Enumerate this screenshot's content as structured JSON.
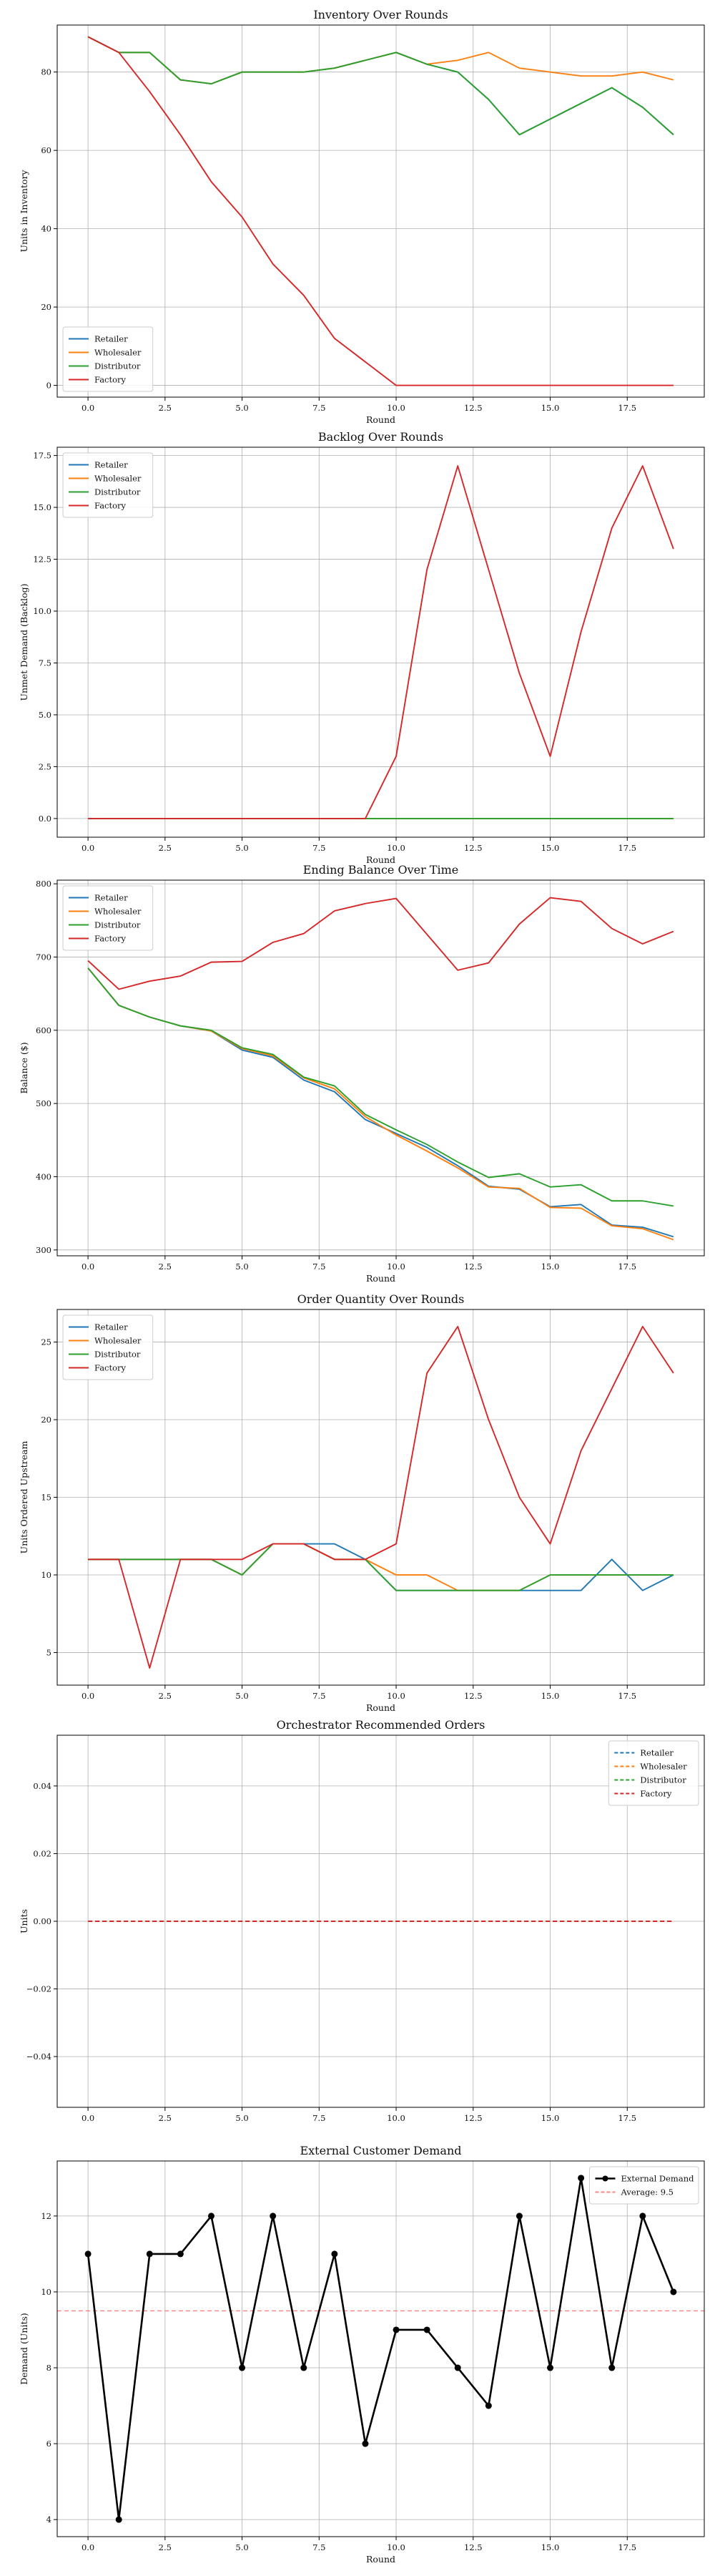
{
  "chart_data": [
    {
      "type": "line",
      "title": "Inventory Over Rounds",
      "xlabel": "Round",
      "ylabel": "Units in Inventory",
      "xlim": [
        -1,
        20
      ],
      "ylim": [
        -3,
        92
      ],
      "xticks": [
        0,
        2.5,
        5,
        7.5,
        10,
        12.5,
        15,
        17.5
      ],
      "xtick_labels": [
        "0.0",
        "2.5",
        "5.0",
        "7.5",
        "10.0",
        "12.5",
        "15.0",
        "17.5"
      ],
      "yticks": [
        0,
        20,
        40,
        60,
        80
      ],
      "ytick_labels": [
        "0",
        "20",
        "40",
        "60",
        "80"
      ],
      "grid": true,
      "legend": "lower-left",
      "x": [
        0,
        1,
        2,
        3,
        4,
        5,
        6,
        7,
        8,
        9,
        10,
        11,
        12,
        13,
        14,
        15,
        16,
        17,
        18,
        19
      ],
      "series": [
        {
          "name": "Retailer",
          "color": "#1f77b4",
          "style": "solid",
          "values": [
            89,
            85,
            85,
            78,
            77,
            80,
            80,
            80,
            81,
            83,
            85,
            82,
            80,
            73,
            64,
            68,
            72,
            76,
            71,
            64
          ]
        },
        {
          "name": "Wholesaler",
          "color": "#ff7f0e",
          "style": "solid",
          "values": [
            89,
            85,
            85,
            78,
            77,
            80,
            80,
            80,
            81,
            83,
            85,
            82,
            83,
            85,
            81,
            80,
            79,
            79,
            80,
            78
          ]
        },
        {
          "name": "Distributor",
          "color": "#2ca02c",
          "style": "solid",
          "values": [
            89,
            85,
            85,
            78,
            77,
            80,
            80,
            80,
            81,
            83,
            85,
            82,
            80,
            73,
            64,
            68,
            72,
            76,
            71,
            64
          ]
        },
        {
          "name": "Factory",
          "color": "#d62728",
          "style": "solid",
          "values": [
            89,
            85,
            75,
            64,
            52,
            43,
            31,
            23,
            12,
            6,
            0,
            0,
            0,
            0,
            0,
            0,
            0,
            0,
            0,
            0
          ]
        }
      ]
    },
    {
      "type": "line",
      "title": "Backlog Over Rounds",
      "xlabel": "Round",
      "ylabel": "Unmet Demand (Backlog)",
      "xlim": [
        -1,
        20
      ],
      "ylim": [
        -0.9,
        17.9
      ],
      "xticks": [
        0,
        2.5,
        5,
        7.5,
        10,
        12.5,
        15,
        17.5
      ],
      "xtick_labels": [
        "0.0",
        "2.5",
        "5.0",
        "7.5",
        "10.0",
        "12.5",
        "15.0",
        "17.5"
      ],
      "yticks": [
        0,
        2.5,
        5,
        7.5,
        10,
        12.5,
        15,
        17.5
      ],
      "ytick_labels": [
        "0.0",
        "2.5",
        "5.0",
        "7.5",
        "10.0",
        "12.5",
        "15.0",
        "17.5"
      ],
      "grid": true,
      "legend": "upper-left",
      "x": [
        0,
        1,
        2,
        3,
        4,
        5,
        6,
        7,
        8,
        9,
        10,
        11,
        12,
        13,
        14,
        15,
        16,
        17,
        18,
        19
      ],
      "series": [
        {
          "name": "Retailer",
          "color": "#1f77b4",
          "style": "solid",
          "values": [
            0,
            0,
            0,
            0,
            0,
            0,
            0,
            0,
            0,
            0,
            0,
            0,
            0,
            0,
            0,
            0,
            0,
            0,
            0,
            0
          ]
        },
        {
          "name": "Wholesaler",
          "color": "#ff7f0e",
          "style": "solid",
          "values": [
            0,
            0,
            0,
            0,
            0,
            0,
            0,
            0,
            0,
            0,
            0,
            0,
            0,
            0,
            0,
            0,
            0,
            0,
            0,
            0
          ]
        },
        {
          "name": "Distributor",
          "color": "#2ca02c",
          "style": "solid",
          "values": [
            0,
            0,
            0,
            0,
            0,
            0,
            0,
            0,
            0,
            0,
            0,
            0,
            0,
            0,
            0,
            0,
            0,
            0,
            0,
            0
          ]
        },
        {
          "name": "Factory",
          "color": "#d62728",
          "style": "solid",
          "values": [
            0,
            0,
            0,
            0,
            0,
            0,
            0,
            0,
            0,
            0,
            3,
            12,
            17,
            12,
            7,
            3,
            9,
            14,
            17,
            13
          ]
        }
      ]
    },
    {
      "type": "line",
      "title": "Ending Balance Over Time",
      "xlabel": "Round",
      "ylabel": "Balance ($)",
      "xlim": [
        -1,
        20
      ],
      "ylim": [
        292,
        805
      ],
      "xticks": [
        0,
        2.5,
        5,
        7.5,
        10,
        12.5,
        15,
        17.5
      ],
      "xtick_labels": [
        "0.0",
        "2.5",
        "5.0",
        "7.5",
        "10.0",
        "12.5",
        "15.0",
        "17.5"
      ],
      "yticks": [
        300,
        400,
        500,
        600,
        700,
        800
      ],
      "ytick_labels": [
        "300",
        "400",
        "500",
        "600",
        "700",
        "800"
      ],
      "grid": true,
      "legend": "upper-left",
      "x": [
        0,
        1,
        2,
        3,
        4,
        5,
        6,
        7,
        8,
        9,
        10,
        11,
        12,
        13,
        14,
        15,
        16,
        17,
        18,
        19
      ],
      "series": [
        {
          "name": "Retailer",
          "color": "#1f77b4",
          "style": "solid",
          "values": [
            685,
            634,
            618,
            606,
            599,
            573,
            563,
            532,
            516,
            478,
            459,
            440,
            415,
            387,
            383,
            359,
            362,
            334,
            331,
            318
          ]
        },
        {
          "name": "Wholesaler",
          "color": "#ff7f0e",
          "style": "solid",
          "values": [
            685,
            634,
            618,
            606,
            599,
            575,
            565,
            535,
            520,
            482,
            457,
            435,
            412,
            386,
            384,
            358,
            357,
            333,
            329,
            314
          ]
        },
        {
          "name": "Distributor",
          "color": "#2ca02c",
          "style": "solid",
          "values": [
            685,
            634,
            618,
            606,
            600,
            576,
            567,
            536,
            524,
            485,
            464,
            444,
            420,
            399,
            404,
            386,
            389,
            367,
            367,
            360
          ]
        },
        {
          "name": "Factory",
          "color": "#d62728",
          "style": "solid",
          "values": [
            695,
            656,
            667,
            674,
            693,
            694,
            720,
            732,
            763,
            773,
            780,
            731,
            682,
            692,
            745,
            781,
            776,
            739,
            718,
            735
          ]
        }
      ]
    },
    {
      "type": "line",
      "title": "Order Quantity Over Rounds",
      "xlabel": "Round",
      "ylabel": "Units Ordered Upstream",
      "xlim": [
        -1,
        20
      ],
      "ylim": [
        2.9,
        27.1
      ],
      "xticks": [
        0,
        2.5,
        5,
        7.5,
        10,
        12.5,
        15,
        17.5
      ],
      "xtick_labels": [
        "0.0",
        "2.5",
        "5.0",
        "7.5",
        "10.0",
        "12.5",
        "15.0",
        "17.5"
      ],
      "yticks": [
        5,
        10,
        15,
        20,
        25
      ],
      "ytick_labels": [
        "5",
        "10",
        "15",
        "20",
        "25"
      ],
      "grid": true,
      "legend": "upper-left",
      "x": [
        0,
        1,
        2,
        3,
        4,
        5,
        6,
        7,
        8,
        9,
        10,
        11,
        12,
        13,
        14,
        15,
        16,
        17,
        18,
        19
      ],
      "series": [
        {
          "name": "Retailer",
          "color": "#1f77b4",
          "style": "solid",
          "values": [
            11,
            11,
            11,
            11,
            11,
            10,
            12,
            12,
            12,
            11,
            9,
            9,
            9,
            9,
            9,
            9,
            9,
            11,
            9,
            10
          ]
        },
        {
          "name": "Wholesaler",
          "color": "#ff7f0e",
          "style": "solid",
          "values": [
            11,
            11,
            11,
            11,
            11,
            10,
            12,
            12,
            11,
            11,
            10,
            10,
            9,
            9,
            9,
            10,
            10,
            10,
            10,
            10
          ]
        },
        {
          "name": "Distributor",
          "color": "#2ca02c",
          "style": "solid",
          "values": [
            11,
            11,
            11,
            11,
            11,
            10,
            12,
            12,
            11,
            11,
            9,
            9,
            9,
            9,
            9,
            10,
            10,
            10,
            10,
            10
          ]
        },
        {
          "name": "Factory",
          "color": "#d62728",
          "style": "solid",
          "values": [
            11,
            11,
            4,
            11,
            11,
            11,
            12,
            12,
            11,
            11,
            12,
            23,
            26,
            20,
            15,
            12,
            18,
            22,
            26,
            23
          ]
        }
      ]
    },
    {
      "type": "line",
      "title": "Orchestrator Recommended Orders",
      "xlabel": "",
      "ylabel": "Units",
      "xlim": [
        -1,
        20
      ],
      "ylim": [
        -0.055,
        0.055
      ],
      "xticks": [
        0,
        2.5,
        5,
        7.5,
        10,
        12.5,
        15,
        17.5
      ],
      "xtick_labels": [
        "0.0",
        "2.5",
        "5.0",
        "7.5",
        "10.0",
        "12.5",
        "15.0",
        "17.5"
      ],
      "yticks": [
        -0.04,
        -0.02,
        0,
        0.02,
        0.04
      ],
      "ytick_labels": [
        "−0.04",
        "−0.02",
        "0.00",
        "0.02",
        "0.04"
      ],
      "grid": true,
      "legend": "upper-right",
      "x": [
        0,
        1,
        2,
        3,
        4,
        5,
        6,
        7,
        8,
        9,
        10,
        11,
        12,
        13,
        14,
        15,
        16,
        17,
        18,
        19
      ],
      "series": [
        {
          "name": "Retailer",
          "color": "#1f77b4",
          "style": "dashed",
          "values": [
            0,
            0,
            0,
            0,
            0,
            0,
            0,
            0,
            0,
            0,
            0,
            0,
            0,
            0,
            0,
            0,
            0,
            0,
            0,
            0
          ]
        },
        {
          "name": "Wholesaler",
          "color": "#ff7f0e",
          "style": "dashed",
          "values": [
            0,
            0,
            0,
            0,
            0,
            0,
            0,
            0,
            0,
            0,
            0,
            0,
            0,
            0,
            0,
            0,
            0,
            0,
            0,
            0
          ]
        },
        {
          "name": "Distributor",
          "color": "#2ca02c",
          "style": "dashed",
          "values": [
            0,
            0,
            0,
            0,
            0,
            0,
            0,
            0,
            0,
            0,
            0,
            0,
            0,
            0,
            0,
            0,
            0,
            0,
            0,
            0
          ]
        },
        {
          "name": "Factory",
          "color": "#d62728",
          "style": "dashed",
          "values": [
            0,
            0,
            0,
            0,
            0,
            0,
            0,
            0,
            0,
            0,
            0,
            0,
            0,
            0,
            0,
            0,
            0,
            0,
            0,
            0
          ]
        }
      ]
    },
    {
      "type": "line",
      "title": "External Customer Demand",
      "xlabel": "Round",
      "ylabel": "Demand (Units)",
      "xlim": [
        -1,
        20
      ],
      "ylim": [
        3.55,
        13.45
      ],
      "xticks": [
        0,
        2.5,
        5,
        7.5,
        10,
        12.5,
        15,
        17.5
      ],
      "xtick_labels": [
        "0.0",
        "2.5",
        "5.0",
        "7.5",
        "10.0",
        "12.5",
        "15.0",
        "17.5"
      ],
      "yticks": [
        4,
        6,
        8,
        10,
        12
      ],
      "ytick_labels": [
        "4",
        "6",
        "8",
        "10",
        "12"
      ],
      "grid": true,
      "legend": "upper-right",
      "x": [
        0,
        1,
        2,
        3,
        4,
        5,
        6,
        7,
        8,
        9,
        10,
        11,
        12,
        13,
        14,
        15,
        16,
        17,
        18,
        19
      ],
      "series": [
        {
          "name": "External Demand",
          "color": "#000000",
          "style": "solid",
          "marker": "circle",
          "values": [
            11,
            4,
            11,
            11,
            12,
            8,
            12,
            8,
            11,
            6,
            9,
            9,
            8,
            7,
            12,
            8,
            13,
            8,
            12,
            10
          ]
        }
      ],
      "hlines": [
        {
          "name": "Average: 9.5",
          "value": 9.5,
          "color": "#ff8080",
          "style": "dashed"
        }
      ]
    }
  ]
}
